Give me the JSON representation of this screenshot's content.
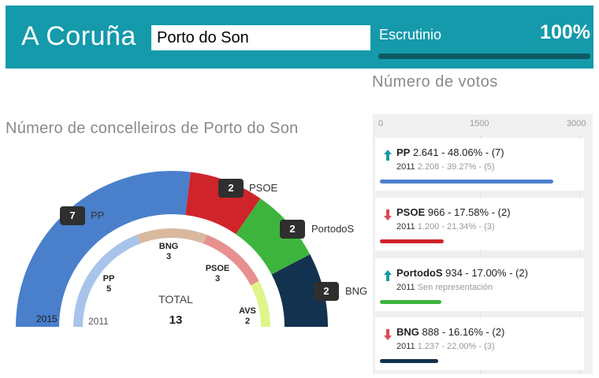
{
  "header": {
    "province": "A Coruña",
    "municipality_value": "Porto do Son",
    "scrutiny_label": "Escrutinio",
    "scrutiny_value": "100%",
    "scrutiny_progress": 1.0
  },
  "council": {
    "title": "Número de concelleiros de Porto do Son",
    "outer_year": "2015",
    "inner_year": "2011",
    "total_label": "TOTAL",
    "total_value": "13",
    "seats_2015": [
      {
        "party": "PP",
        "seats": 7,
        "color": "#4a7fcb"
      },
      {
        "party": "PSOE",
        "seats": 2,
        "color": "#d0242b"
      },
      {
        "party": "PortodoS",
        "seats": 2,
        "color": "#3db53d"
      },
      {
        "party": "BNG",
        "seats": 2,
        "color": "#12324f"
      }
    ],
    "seats_2011": [
      {
        "party": "PP",
        "seats": 5,
        "color": "#a8c4eb"
      },
      {
        "party": "BNG",
        "seats": 3,
        "color": "#d8b9a0"
      },
      {
        "party": "PSOE",
        "seats": 3,
        "color": "#e89090"
      },
      {
        "party": "AVS",
        "seats": 2,
        "color": "#dff58a"
      }
    ],
    "outer_labels": [
      {
        "value": "7",
        "party": "PP"
      },
      {
        "value": "2",
        "party": "PSOE"
      },
      {
        "value": "2",
        "party": "PortodoS"
      },
      {
        "value": "2",
        "party": "BNG"
      }
    ],
    "inner_labels": [
      {
        "party": "PP",
        "value": "5"
      },
      {
        "party": "BNG",
        "value": "3"
      },
      {
        "party": "PSOE",
        "value": "3"
      },
      {
        "party": "AVS",
        "value": "2"
      }
    ]
  },
  "votes": {
    "title": "Número de votos",
    "axis_ticks": [
      "0",
      "1500",
      "3000"
    ],
    "axis_max": 3000,
    "rows": [
      {
        "party": "PP",
        "stats": "2.641 - 48.06% - (7)",
        "year": "2011",
        "prev": "2.208 - 39.27% - (5)",
        "trend": "up",
        "votes": 2641,
        "color": "#4a7fcb"
      },
      {
        "party": "PSOE",
        "stats": "966 - 17.58% - (2)",
        "year": "2011",
        "prev": "1.200 - 21.34% - (3)",
        "trend": "down",
        "votes": 966,
        "color": "#d0242b"
      },
      {
        "party": "PortodoS",
        "stats": "934 - 17.00% - (2)",
        "year": "2011",
        "prev": "Sen representación",
        "trend": "up",
        "votes": 934,
        "color": "#3db53d"
      },
      {
        "party": "BNG",
        "stats": "888 - 16.16% - (2)",
        "year": "2011",
        "prev": "1.237 - 22.00% - (3)",
        "trend": "down",
        "votes": 888,
        "color": "#12324f"
      }
    ]
  },
  "colors": {
    "header_bg": "#149aab",
    "trend_up": "#1a9aa5",
    "trend_down": "#d94a55"
  }
}
